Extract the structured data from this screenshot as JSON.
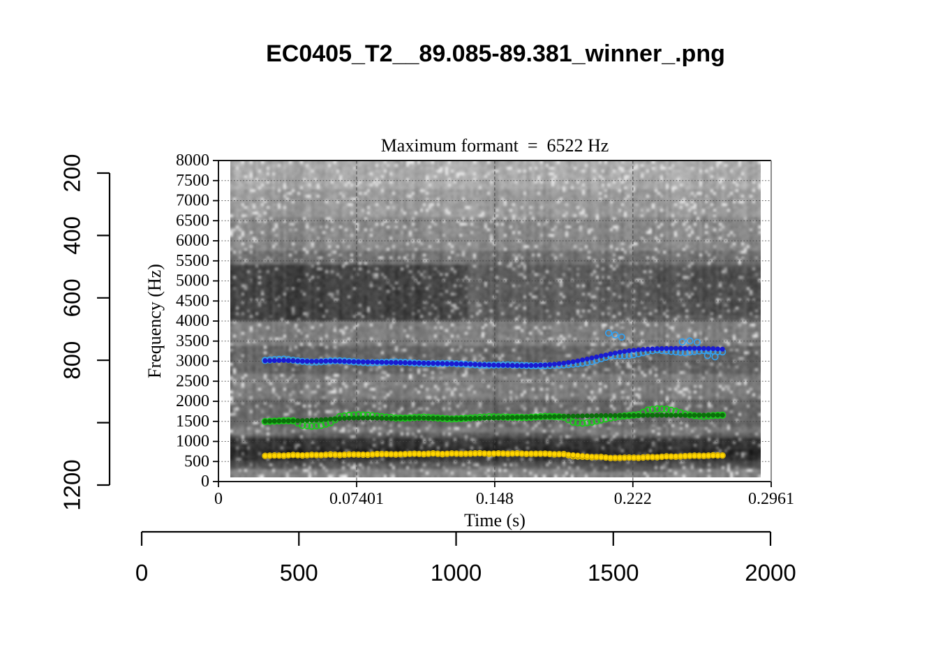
{
  "figure": {
    "title": "EC0405_T2__89.085-89.381_winner_.png",
    "background": "#ffffff"
  },
  "chart_data": {
    "type": "scatter",
    "title": "Maximum formant  =  6522 Hz",
    "xlabel": "Time (s)",
    "ylabel": "Frequency (Hz)",
    "xlim": [
      0,
      0.2961
    ],
    "ylim": [
      0,
      8000
    ],
    "x_tick_values": [
      0,
      0.07401,
      0.148,
      0.222,
      0.2961
    ],
    "x_tick_labels": [
      "0",
      "0.07401",
      "0.148",
      "0.222",
      "0.2961"
    ],
    "y_tick_values": [
      0,
      500,
      1000,
      1500,
      2000,
      2500,
      3000,
      3500,
      4000,
      4500,
      5000,
      5500,
      6000,
      6500,
      7000,
      7500,
      8000
    ],
    "y_tick_labels": [
      "0",
      "500",
      "1000",
      "1500",
      "2000",
      "2500",
      "3000",
      "3500",
      "4000",
      "4500",
      "5000",
      "5500",
      "6000",
      "6500",
      "7000",
      "7500",
      "8000"
    ],
    "grid": {
      "horizontal_dotted_every_hz": 500,
      "vertical_dashed_at": [
        0.07401,
        0.148,
        0.222
      ]
    },
    "background": "grayscale spectrogram, 0-8000 Hz, dark bands near 450-950 Hz and 3950-5400 Hz",
    "t": [
      0.025,
      0.03,
      0.035,
      0.04,
      0.045,
      0.05,
      0.055,
      0.06,
      0.065,
      0.07,
      0.075,
      0.08,
      0.085,
      0.09,
      0.095,
      0.1,
      0.105,
      0.11,
      0.115,
      0.12,
      0.125,
      0.13,
      0.135,
      0.14,
      0.145,
      0.15,
      0.155,
      0.16,
      0.165,
      0.17,
      0.175,
      0.18,
      0.185,
      0.19,
      0.195,
      0.2,
      0.205,
      0.21,
      0.215,
      0.22,
      0.225,
      0.23,
      0.235,
      0.24,
      0.245,
      0.25,
      0.255,
      0.26,
      0.265,
      0.27
    ],
    "series": [
      {
        "name": "F1 winner track",
        "marker": "filled-dot",
        "color": "#FFD700",
        "edge": "#C9A200",
        "f": [
          640,
          645,
          650,
          655,
          658,
          660,
          663,
          665,
          668,
          670,
          672,
          675,
          678,
          680,
          682,
          685,
          688,
          690,
          692,
          693,
          695,
          696,
          697,
          698,
          698,
          698,
          697,
          696,
          695,
          693,
          690,
          685,
          675,
          660,
          640,
          620,
          605,
          595,
          590,
          592,
          598,
          605,
          612,
          620,
          628,
          635,
          640,
          645,
          648,
          650
        ]
      },
      {
        "name": "F2 winner track",
        "marker": "filled-dot",
        "color": "#0B6E0B",
        "edge": "#0B6E0B",
        "f": [
          1500,
          1505,
          1510,
          1515,
          1520,
          1530,
          1540,
          1555,
          1570,
          1580,
          1585,
          1585,
          1580,
          1575,
          1575,
          1580,
          1585,
          1585,
          1580,
          1575,
          1570,
          1570,
          1575,
          1580,
          1585,
          1590,
          1595,
          1600,
          1605,
          1610,
          1615,
          1620,
          1625,
          1630,
          1635,
          1640,
          1645,
          1645,
          1645,
          1645,
          1648,
          1650,
          1652,
          1652,
          1650,
          1650,
          1652,
          1655,
          1655,
          1655
        ]
      },
      {
        "name": "F3 winner track",
        "marker": "filled-dot",
        "color": "#1A1AD0",
        "edge": "#1A1AD0",
        "f": [
          3010,
          3015,
          3020,
          3010,
          3000,
          2995,
          3000,
          3005,
          3000,
          2990,
          2985,
          2980,
          2975,
          2970,
          2965,
          2960,
          2955,
          2950,
          2945,
          2940,
          2935,
          2930,
          2925,
          2915,
          2905,
          2900,
          2895,
          2890,
          2890,
          2895,
          2905,
          2925,
          2950,
          2985,
          3030,
          3080,
          3130,
          3180,
          3225,
          3260,
          3285,
          3300,
          3310,
          3315,
          3320,
          3320,
          3320,
          3315,
          3310,
          3300
        ]
      },
      {
        "name": "F1 candidates",
        "marker": "open-circle",
        "color": "#E9C400",
        "f": [
          640,
          650,
          645,
          663,
          650,
          664,
          659,
          675,
          662,
          676,
          672,
          667,
          686,
          685,
          677,
          685,
          694,
          684,
          702,
          683,
          700,
          691,
          697,
          706,
          690,
          702,
          693,
          702,
          689,
          693,
          695,
          680,
          685,
          630,
          620,
          610,
          613,
          587,
          590,
          598,
          592,
          610,
          607,
          628,
          620,
          635,
          645,
          640,
          654,
          650
        ]
      },
      {
        "name": "F2 candidates",
        "marker": "open-circle",
        "color": "#16CE16",
        "f": [
          1495,
          1505,
          1515,
          1515,
          1400,
          1380,
          1400,
          1465,
          1620,
          1650,
          1665,
          1655,
          1630,
          1605,
          1585,
          1580,
          1595,
          1605,
          1590,
          1575,
          1560,
          1570,
          1585,
          1600,
          1615,
          1610,
          1605,
          1600,
          1595,
          1610,
          1625,
          1620,
          1605,
          1480,
          1455,
          1480,
          1535,
          1585,
          1625,
          1645,
          1668,
          1780,
          1812,
          1802,
          1750,
          1680,
          1642,
          1625,
          1645,
          1655
        ]
      },
      {
        "name": "F3 candidates",
        "marker": "open-circle",
        "color": "#33A1F2",
        "f": [
          3020,
          3040,
          3050,
          3025,
          2995,
          2975,
          2985,
          3005,
          3010,
          2995,
          2975,
          2960,
          2965,
          2975,
          2980,
          2970,
          2955,
          2940,
          2940,
          2945,
          2945,
          2930,
          2915,
          2900,
          2900,
          2905,
          2910,
          2900,
          2890,
          2885,
          2885,
          2895,
          2905,
          2925,
          2950,
          2990,
          3060,
          3135,
          3135,
          3140,
          3185,
          3240,
          3280,
          3255,
          3230,
          3210,
          3240,
          3265,
          3250,
          3230
        ],
        "extra_t": [
          0.209,
          0.2125,
          0.216,
          0.2485,
          0.2525,
          0.2565,
          0.262,
          0.266
        ],
        "extra_f": [
          3700,
          3655,
          3600,
          3480,
          3505,
          3470,
          3140,
          3110
        ]
      }
    ]
  },
  "outer_axes": {
    "left": {
      "tick_values": [
        200,
        400,
        600,
        800,
        1000,
        1200
      ],
      "tick_labels": [
        "200",
        "400",
        "600",
        "800",
        "",
        "1200"
      ]
    },
    "bottom": {
      "tick_values": [
        0,
        500,
        1000,
        1500,
        2000
      ],
      "tick_labels": [
        "0",
        "500",
        "1000",
        "1500",
        "2000"
      ]
    }
  },
  "colors": {
    "grid_dotted": "#454545",
    "grid_dashed": "#454545",
    "box": "#141414",
    "box_right": "#8c8c8c",
    "axis": "#000000",
    "f1_fill": "#FFD700",
    "f2_fill": "#0B6E0B",
    "f3_fill": "#1A1AD0",
    "f1_candidate": "#E9C400",
    "f2_candidate": "#16CE16",
    "f3_candidate": "#33A1F2"
  }
}
